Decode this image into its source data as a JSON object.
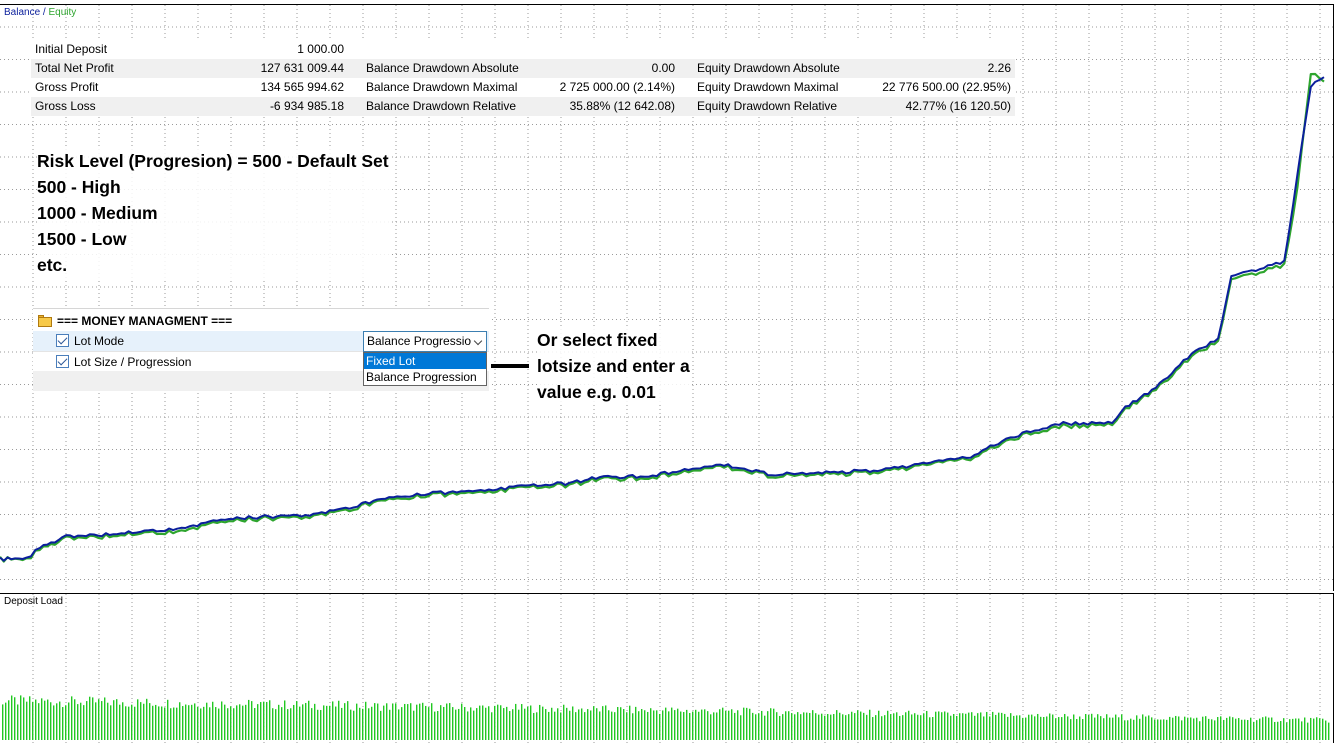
{
  "legend": {
    "balance": "Balance",
    "separator": " / ",
    "equity": "Equity"
  },
  "colors": {
    "balance": "#0b1f9c",
    "equity": "#2ea52e",
    "grid": "#9a9a9a",
    "deposit_bars": "#22c822",
    "selection": "#0078d7"
  },
  "stats": {
    "row0": {
      "label1": "Initial Deposit",
      "value1": "1 000.00"
    },
    "row1": {
      "label1": "Total Net Profit",
      "value1": "127 631 009.44",
      "label2": "Balance Drawdown Absolute",
      "value2": "0.00",
      "label3": "Equity Drawdown Absolute",
      "value3": "2.26"
    },
    "row2": {
      "label1": "Gross Profit",
      "value1": "134 565 994.62",
      "label2": "Balance Drawdown Maximal",
      "value2": "2 725 000.00 (2.14%)",
      "label3": "Equity Drawdown Maximal",
      "value3": "22 776 500.00 (22.95%)"
    },
    "row3": {
      "label1": "Gross Loss",
      "value1": "-6 934 985.18",
      "label2": "Balance Drawdown Relative",
      "value2": "35.88% (12 642.08)",
      "label3": "Equity Drawdown Relative",
      "value3": "42.77% (16 120.50)"
    }
  },
  "risk_note": [
    "Risk Level (Progresion) = 500 - Default Set",
    "500 - High",
    "1000 - Medium",
    "1500 - Low",
    "etc."
  ],
  "money_management": {
    "header": "=== MONEY MANAGMENT ===",
    "lot_mode_label": "Lot Mode",
    "lot_size_label": "Lot Size / Progression",
    "dropdown_value": "Balance Progressio",
    "options": [
      "Fixed Lot",
      "Balance Progression"
    ],
    "selected_option": "Fixed Lot"
  },
  "fixed_note": [
    "Or select fixed",
    "lotsize and enter a",
    "value e.g. 0.01"
  ],
  "deposit_load_label": "Deposit Load",
  "chart_data": {
    "type": "line",
    "x": [
      0,
      0.02,
      0.03,
      0.05,
      0.08,
      0.1,
      0.14,
      0.17,
      0.2,
      0.24,
      0.27,
      0.3,
      0.33,
      0.36,
      0.4,
      0.43,
      0.45,
      0.49,
      0.52,
      0.55,
      0.58,
      0.6,
      0.63,
      0.66,
      0.7,
      0.73,
      0.76,
      0.8,
      0.84,
      0.85,
      0.87,
      0.9,
      0.92,
      0.93,
      0.97,
      0.98,
      0.99,
      1.0
    ],
    "series": [
      {
        "name": "Balance",
        "values": [
          1.2,
          1.3,
          2.5,
          3.8,
          4.0,
          4.2,
          4.8,
          5.8,
          6.0,
          6.3,
          7.3,
          8.3,
          8.7,
          8.9,
          9.5,
          9.8,
          10.4,
          10.6,
          11.4,
          11.8,
          10.8,
          10.8,
          11.0,
          11.2,
          12.0,
          12.6,
          14.8,
          16.5,
          16.6,
          18.4,
          20.2,
          24.3,
          26.0,
          33.0,
          34.7,
          44.5,
          54.5,
          55.5
        ]
      },
      {
        "name": "Equity",
        "values": [
          1.2,
          1.2,
          2.3,
          3.6,
          3.8,
          4.0,
          4.5,
          5.6,
          5.8,
          6.1,
          7.1,
          8.1,
          8.5,
          8.7,
          9.3,
          9.6,
          10.2,
          10.4,
          11.2,
          11.6,
          10.6,
          10.6,
          10.8,
          11.0,
          11.8,
          12.4,
          14.6,
          16.2,
          16.4,
          18.2,
          20.0,
          24.0,
          25.7,
          32.6,
          34.3,
          43.0,
          56.0,
          55.0
        ]
      }
    ],
    "ylim": [
      0,
      58
    ],
    "grid": true,
    "deposit_load": {
      "type": "bar",
      "bars_start_level": 0.9,
      "bars_end_level": 0.45
    }
  }
}
